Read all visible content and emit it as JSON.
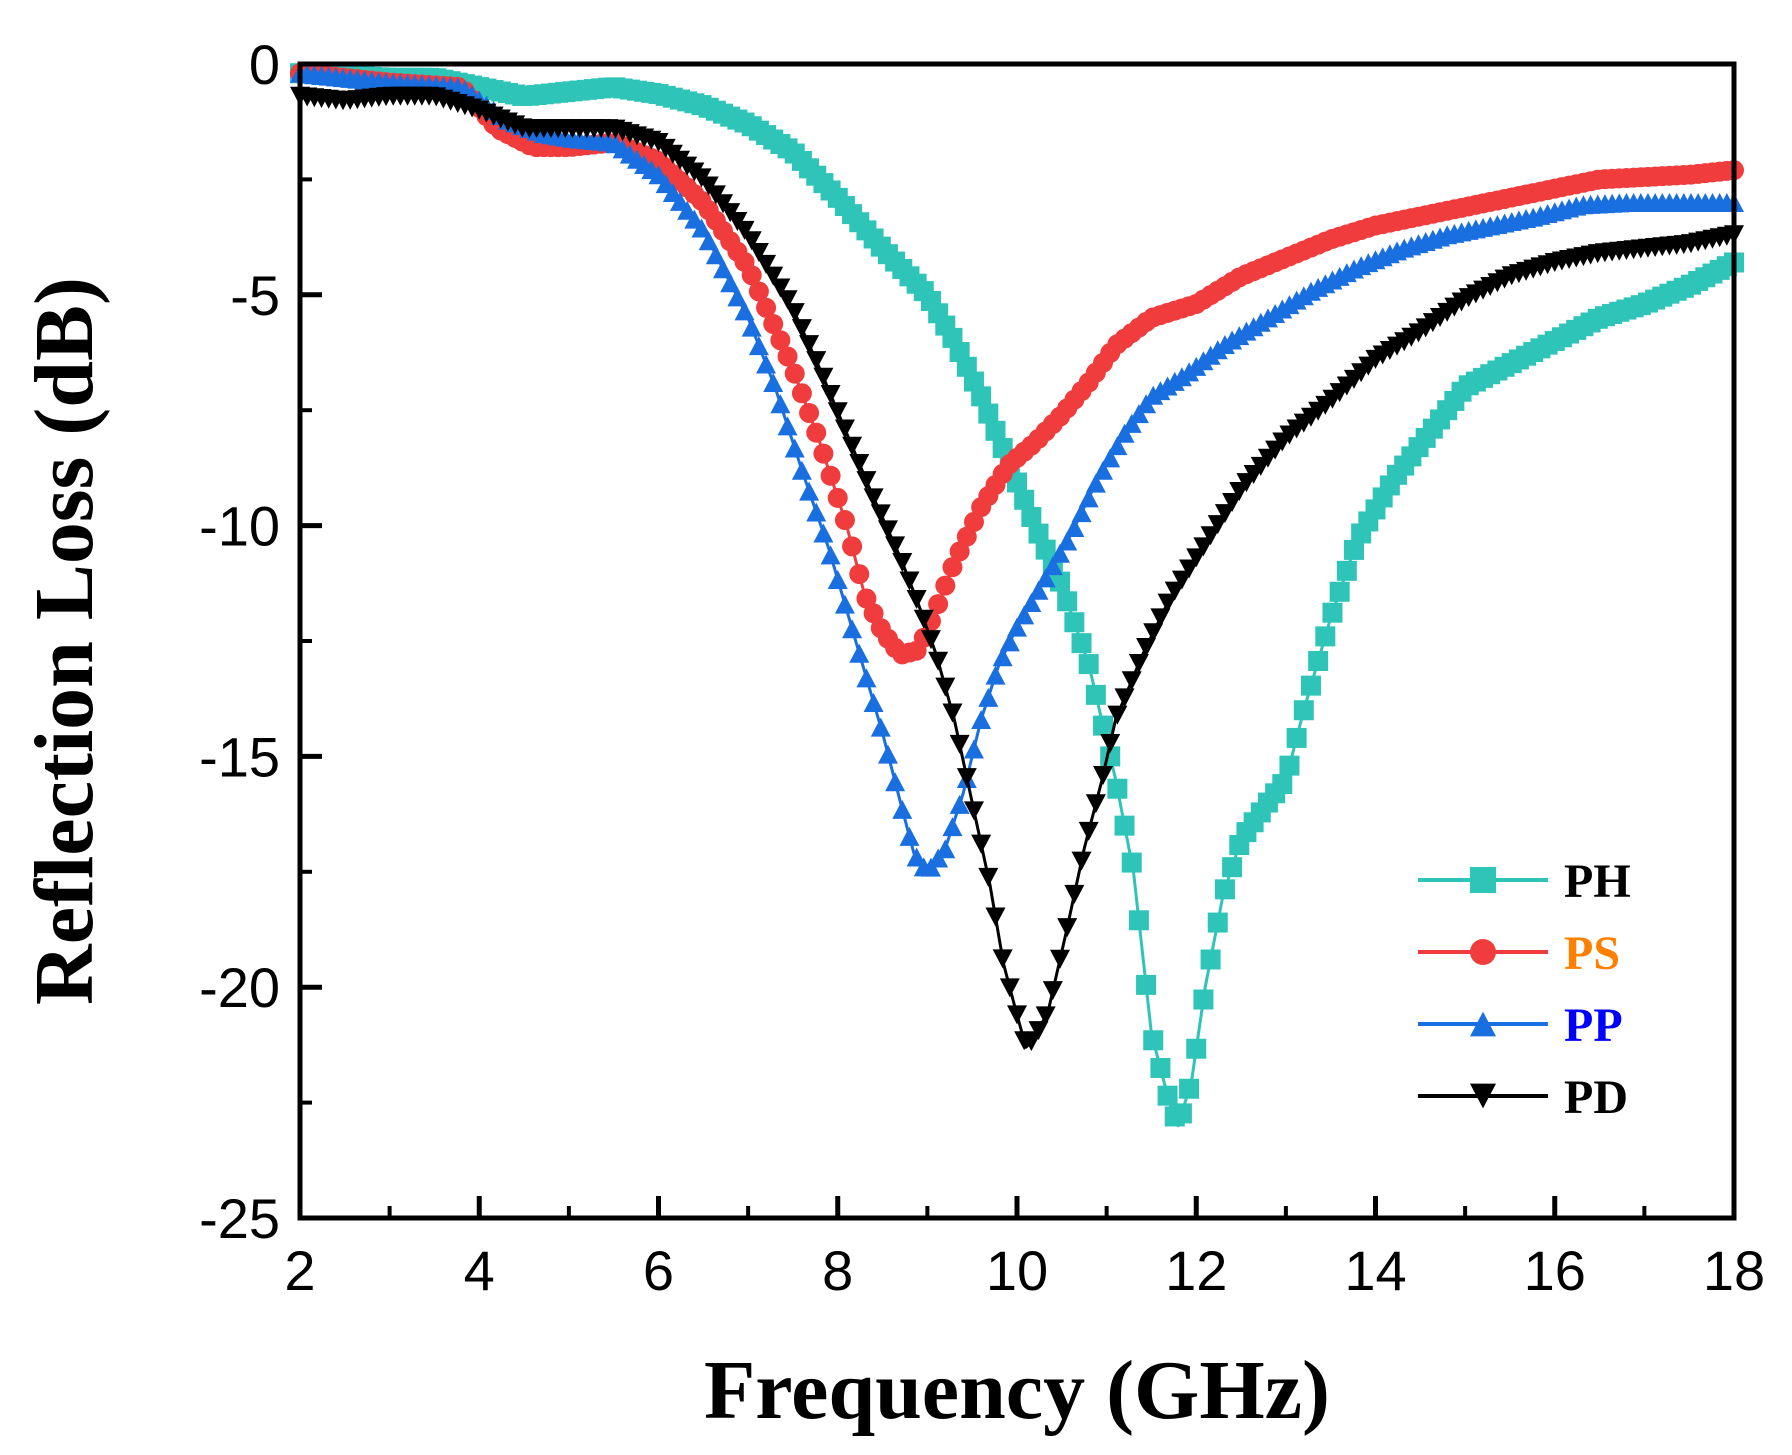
{
  "chart_data": {
    "type": "line",
    "title": "",
    "xlabel": "Frequency (GHz)",
    "ylabel": "Reflection Loss (dB)",
    "xlim": [
      2,
      18
    ],
    "ylim": [
      -25,
      0
    ],
    "x_ticks": [
      2,
      4,
      6,
      8,
      10,
      12,
      14,
      16,
      18
    ],
    "y_ticks": [
      0,
      -5,
      -10,
      -15,
      -20,
      -25
    ],
    "x_tick_labels": [
      "2",
      "4",
      "6",
      "8",
      "10",
      "12",
      "14",
      "16",
      "18"
    ],
    "y_tick_labels": [
      "0",
      "-5",
      "-10",
      "-15",
      "-20",
      "-25"
    ],
    "grid": false,
    "legend_position": "bottom-right",
    "series": [
      {
        "name": "PH",
        "color": "#2fc4b8",
        "label_color": "#000000",
        "marker": "square",
        "points": [
          [
            2,
            -0.2
          ],
          [
            3,
            -0.3
          ],
          [
            3.5,
            -0.3
          ],
          [
            4,
            -0.5
          ],
          [
            4.5,
            -0.7
          ],
          [
            5,
            -0.6
          ],
          [
            5.5,
            -0.5
          ],
          [
            6,
            -0.65
          ],
          [
            6.5,
            -0.9
          ],
          [
            7,
            -1.3
          ],
          [
            7.5,
            -1.9
          ],
          [
            8,
            -2.9
          ],
          [
            8.5,
            -4.0
          ],
          [
            9,
            -5.0
          ],
          [
            9.3,
            -6.0
          ],
          [
            9.6,
            -7.2
          ],
          [
            9.9,
            -8.6
          ],
          [
            10.2,
            -10.0
          ],
          [
            10.5,
            -11.3
          ],
          [
            10.8,
            -13.0
          ],
          [
            11.1,
            -15.5
          ],
          [
            11.3,
            -17.5
          ],
          [
            11.5,
            -21.0
          ],
          [
            11.7,
            -22.5
          ],
          [
            11.8,
            -23.0
          ],
          [
            11.95,
            -22.0
          ],
          [
            12.1,
            -20.0
          ],
          [
            12.3,
            -18.0
          ],
          [
            12.5,
            -16.8
          ],
          [
            12.8,
            -16.0
          ],
          [
            13.0,
            -15.5
          ],
          [
            13.2,
            -14.0
          ],
          [
            13.5,
            -12.0
          ],
          [
            13.8,
            -10.3
          ],
          [
            14.2,
            -9.0
          ],
          [
            14.6,
            -8.0
          ],
          [
            15.0,
            -7.0
          ],
          [
            15.5,
            -6.5
          ],
          [
            16.0,
            -6.0
          ],
          [
            16.5,
            -5.5
          ],
          [
            17.0,
            -5.2
          ],
          [
            17.5,
            -4.8
          ],
          [
            18.0,
            -4.3
          ]
        ]
      },
      {
        "name": "PS",
        "color": "#f03c3c",
        "label_color": "#ff7f00",
        "marker": "circle",
        "points": [
          [
            2,
            -0.2
          ],
          [
            3,
            -0.4
          ],
          [
            3.8,
            -0.5
          ],
          [
            4.2,
            -1.4
          ],
          [
            4.6,
            -1.8
          ],
          [
            5,
            -1.8
          ],
          [
            5.5,
            -1.7
          ],
          [
            6,
            -2.1
          ],
          [
            6.5,
            -3.0
          ],
          [
            7,
            -4.4
          ],
          [
            7.5,
            -6.6
          ],
          [
            7.8,
            -8.2
          ],
          [
            8.1,
            -10.0
          ],
          [
            8.3,
            -11.5
          ],
          [
            8.5,
            -12.3
          ],
          [
            8.7,
            -12.8
          ],
          [
            8.9,
            -12.7
          ],
          [
            9.1,
            -11.8
          ],
          [
            9.3,
            -10.8
          ],
          [
            9.6,
            -9.6
          ],
          [
            9.9,
            -8.7
          ],
          [
            10.2,
            -8.2
          ],
          [
            10.5,
            -7.6
          ],
          [
            10.8,
            -6.9
          ],
          [
            11.1,
            -6.1
          ],
          [
            11.5,
            -5.5
          ],
          [
            12.0,
            -5.2
          ],
          [
            12.5,
            -4.6
          ],
          [
            13.0,
            -4.2
          ],
          [
            13.5,
            -3.8
          ],
          [
            14.0,
            -3.5
          ],
          [
            14.5,
            -3.3
          ],
          [
            15.0,
            -3.1
          ],
          [
            15.5,
            -2.9
          ],
          [
            16.0,
            -2.7
          ],
          [
            16.5,
            -2.5
          ],
          [
            17.0,
            -2.45
          ],
          [
            17.5,
            -2.4
          ],
          [
            18.0,
            -2.3
          ]
        ]
      },
      {
        "name": "PP",
        "color": "#1a6fe0",
        "label_color": "#0000ff",
        "marker": "triangle-up",
        "points": [
          [
            2,
            -0.2
          ],
          [
            3,
            -0.4
          ],
          [
            3.8,
            -0.5
          ],
          [
            4.3,
            -1.2
          ],
          [
            4.7,
            -1.5
          ],
          [
            5,
            -1.6
          ],
          [
            5.5,
            -1.7
          ],
          [
            6,
            -2.4
          ],
          [
            6.5,
            -3.6
          ],
          [
            7,
            -5.5
          ],
          [
            7.3,
            -7.0
          ],
          [
            7.6,
            -8.8
          ],
          [
            7.9,
            -10.5
          ],
          [
            8.2,
            -12.5
          ],
          [
            8.5,
            -14.5
          ],
          [
            8.7,
            -16.0
          ],
          [
            8.85,
            -17.1
          ],
          [
            9.0,
            -17.5
          ],
          [
            9.2,
            -17.0
          ],
          [
            9.4,
            -15.8
          ],
          [
            9.6,
            -14.2
          ],
          [
            9.8,
            -13.0
          ],
          [
            10.0,
            -12.2
          ],
          [
            10.3,
            -11.2
          ],
          [
            10.6,
            -10.2
          ],
          [
            10.9,
            -9.0
          ],
          [
            11.2,
            -8.0
          ],
          [
            11.5,
            -7.2
          ],
          [
            11.9,
            -6.7
          ],
          [
            12.3,
            -6.1
          ],
          [
            12.8,
            -5.5
          ],
          [
            13.3,
            -4.9
          ],
          [
            13.8,
            -4.4
          ],
          [
            14.3,
            -4.0
          ],
          [
            14.8,
            -3.7
          ],
          [
            15.3,
            -3.5
          ],
          [
            15.8,
            -3.3
          ],
          [
            16.3,
            -3.05
          ],
          [
            16.8,
            -3.0
          ],
          [
            17.3,
            -3.0
          ],
          [
            18.0,
            -3.0
          ]
        ]
      },
      {
        "name": "PD",
        "color": "#000000",
        "label_color": "#000000",
        "marker": "triangle-down",
        "points": [
          [
            2,
            -0.7
          ],
          [
            2.5,
            -0.8
          ],
          [
            3,
            -0.7
          ],
          [
            3.5,
            -0.7
          ],
          [
            4,
            -1.0
          ],
          [
            4.5,
            -1.4
          ],
          [
            5,
            -1.4
          ],
          [
            5.5,
            -1.4
          ],
          [
            6,
            -1.7
          ],
          [
            6.5,
            -2.5
          ],
          [
            7,
            -3.7
          ],
          [
            7.5,
            -5.3
          ],
          [
            7.8,
            -6.6
          ],
          [
            8.1,
            -8.0
          ],
          [
            8.4,
            -9.4
          ],
          [
            8.7,
            -10.7
          ],
          [
            8.9,
            -11.7
          ],
          [
            9.1,
            -12.8
          ],
          [
            9.3,
            -14.2
          ],
          [
            9.5,
            -16.0
          ],
          [
            9.7,
            -17.8
          ],
          [
            9.85,
            -19.5
          ],
          [
            10.0,
            -20.6
          ],
          [
            10.1,
            -21.3
          ],
          [
            10.2,
            -21.1
          ],
          [
            10.35,
            -20.5
          ],
          [
            10.55,
            -18.8
          ],
          [
            10.75,
            -17.0
          ],
          [
            10.95,
            -15.5
          ],
          [
            11.1,
            -14.2
          ],
          [
            11.4,
            -12.8
          ],
          [
            11.7,
            -11.6
          ],
          [
            12.1,
            -10.4
          ],
          [
            12.5,
            -9.2
          ],
          [
            13.0,
            -8.1
          ],
          [
            13.5,
            -7.3
          ],
          [
            14.0,
            -6.4
          ],
          [
            14.5,
            -5.8
          ],
          [
            15.0,
            -5.1
          ],
          [
            15.5,
            -4.6
          ],
          [
            16.0,
            -4.3
          ],
          [
            16.5,
            -4.1
          ],
          [
            17.0,
            -4.0
          ],
          [
            17.5,
            -3.9
          ],
          [
            18.0,
            -3.7
          ]
        ]
      }
    ]
  }
}
